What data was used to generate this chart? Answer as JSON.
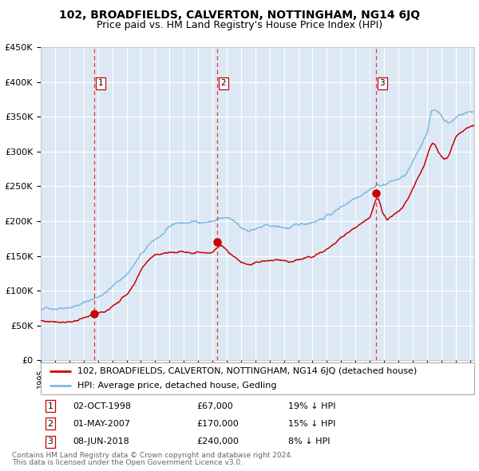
{
  "title": "102, BROADFIELDS, CALVERTON, NOTTINGHAM, NG14 6JQ",
  "subtitle": "Price paid vs. HM Land Registry's House Price Index (HPI)",
  "legend_line1": "102, BROADFIELDS, CALVERTON, NOTTINGHAM, NG14 6JQ (detached house)",
  "legend_line2": "HPI: Average price, detached house, Gedling",
  "transactions": [
    {
      "num": 1,
      "date": "02-OCT-1998",
      "price": 67000,
      "pct": "19%",
      "dir": "↓"
    },
    {
      "num": 2,
      "date": "01-MAY-2007",
      "price": 170000,
      "pct": "15%",
      "dir": "↓"
    },
    {
      "num": 3,
      "date": "08-JUN-2018",
      "price": 240000,
      "pct": "8%",
      "dir": "↓"
    }
  ],
  "sale_dates_decimal": [
    1998.748,
    2007.329,
    2018.438
  ],
  "sale_prices": [
    67000,
    170000,
    240000
  ],
  "ylim": [
    0,
    450000
  ],
  "yticks": [
    0,
    50000,
    100000,
    150000,
    200000,
    250000,
    300000,
    350000,
    400000,
    450000
  ],
  "xmin": 1995.0,
  "xmax": 2025.3,
  "hpi_color": "#7bbce0",
  "price_color": "#cc0000",
  "bg_color": "#dde8f5",
  "grid_color": "#ffffff",
  "vline_color": "#ee3333",
  "dot_color": "#cc0000",
  "footnote1": "Contains HM Land Registry data © Crown copyright and database right 2024.",
  "footnote2": "This data is licensed under the Open Government Licence v3.0."
}
